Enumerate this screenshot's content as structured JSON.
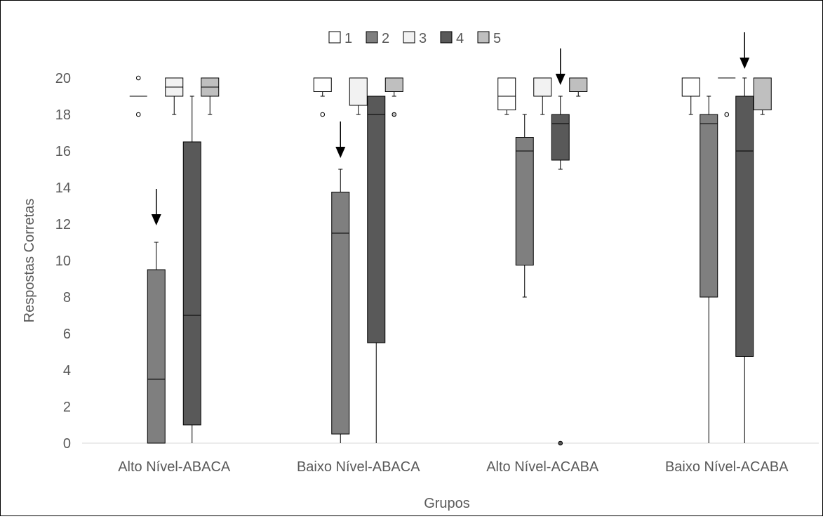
{
  "chart_data": {
    "type": "box",
    "xlabel": "Grupos",
    "ylabel": "Respostas Corretas",
    "ylim": [
      0,
      20
    ],
    "yticks": [
      "0",
      "2",
      "4",
      "6",
      "8",
      "10",
      "12",
      "14",
      "16",
      "18",
      "20"
    ],
    "categories": [
      "Alto Nível-ABACA",
      "Baixo Nível-ABACA",
      "Alto Nível-ACABA",
      "Baixo Nível-ACABA"
    ],
    "legend_position": "top",
    "grid": false,
    "series": [
      {
        "name": "1",
        "color": "#ffffff",
        "boxes": [
          {
            "min": 19,
            "q1": 19,
            "median": 19,
            "q3": 19,
            "max": 19,
            "outliers": [
              18,
              20
            ]
          },
          {
            "min": 19,
            "q1": 19.25,
            "median": 20,
            "q3": 20,
            "max": 20,
            "outliers": [
              18
            ]
          },
          {
            "min": 18,
            "q1": 18.25,
            "median": 19,
            "q3": 20,
            "max": 20,
            "outliers": []
          },
          {
            "min": 18,
            "q1": 19,
            "median": 20,
            "q3": 20,
            "max": 20,
            "outliers": []
          }
        ]
      },
      {
        "name": "2",
        "color": "#7f7f7f",
        "boxes": [
          {
            "min": 0,
            "q1": 0,
            "median": 3.5,
            "q3": 9.5,
            "max": 11,
            "outliers": []
          },
          {
            "min": 0,
            "q1": 0.5,
            "median": 11.5,
            "q3": 13.75,
            "max": 15,
            "outliers": []
          },
          {
            "min": 8,
            "q1": 9.75,
            "median": 16,
            "q3": 16.75,
            "max": 18,
            "outliers": []
          },
          {
            "min": 0,
            "q1": 8,
            "median": 17.5,
            "q3": 18,
            "max": 19,
            "outliers": []
          }
        ]
      },
      {
        "name": "3",
        "color": "#f2f2f2",
        "boxes": [
          {
            "min": 18,
            "q1": 19,
            "median": 19.5,
            "q3": 20,
            "max": 20,
            "outliers": []
          },
          {
            "min": 18,
            "q1": 18.5,
            "median": 20,
            "q3": 20,
            "max": 20,
            "outliers": []
          },
          {
            "min": 18,
            "q1": 19,
            "median": 20,
            "q3": 20,
            "max": 20,
            "outliers": []
          },
          {
            "min": 20,
            "q1": 20,
            "median": 20,
            "q3": 20,
            "max": 20,
            "outliers": [
              18
            ]
          }
        ]
      },
      {
        "name": "4",
        "color": "#595959",
        "boxes": [
          {
            "min": 0,
            "q1": 1,
            "median": 7,
            "q3": 16.5,
            "max": 19,
            "outliers": []
          },
          {
            "min": 0,
            "q1": 5.5,
            "median": 18,
            "q3": 19,
            "max": 19,
            "outliers": []
          },
          {
            "min": 15,
            "q1": 15.5,
            "median": 17.5,
            "q3": 18,
            "max": 19,
            "outliers": [
              0
            ]
          },
          {
            "min": 0,
            "q1": 4.75,
            "median": 16,
            "q3": 19,
            "max": 20,
            "outliers": []
          }
        ]
      },
      {
        "name": "5",
        "color": "#bfbfbf",
        "boxes": [
          {
            "min": 18,
            "q1": 19,
            "median": 19.5,
            "q3": 20,
            "max": 20,
            "outliers": []
          },
          {
            "min": 19,
            "q1": 19.25,
            "median": 20,
            "q3": 20,
            "max": 20,
            "outliers": [
              18
            ]
          },
          {
            "min": 19,
            "q1": 19.25,
            "median": 20,
            "q3": 20,
            "max": 20,
            "outliers": []
          },
          {
            "min": 18,
            "q1": 18.25,
            "median": 20,
            "q3": 20,
            "max": 20,
            "outliers": []
          }
        ]
      }
    ],
    "annotations": [
      {
        "type": "arrow",
        "category_index": 0,
        "series_index": 1
      },
      {
        "type": "arrow",
        "category_index": 1,
        "series_index": 1
      },
      {
        "type": "arrow",
        "category_index": 2,
        "series_index": 3
      },
      {
        "type": "arrow",
        "category_index": 3,
        "series_index": 3
      }
    ]
  }
}
